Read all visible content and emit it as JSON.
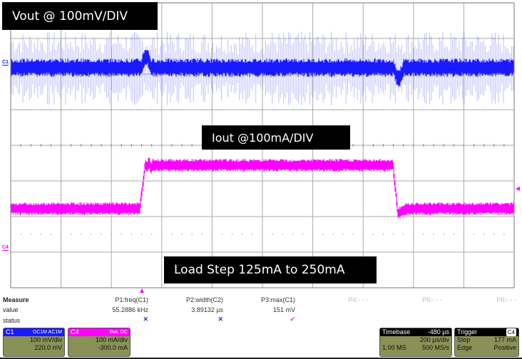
{
  "labels": {
    "vout": "Vout @ 100mV/DIV",
    "iout": "Iout @100mA/DIV",
    "load_step": "Load Step 125mA to 250mA"
  },
  "channels": {
    "c1_marker": "C1",
    "c4_marker": "C4"
  },
  "colors": {
    "c1": "#1a1aff",
    "c4": "#ff00ff",
    "panel": "#8a9156"
  },
  "measure": {
    "title": "Measure",
    "row_value": "value",
    "row_status": "status",
    "params": [
      {
        "name": "P1:freq(C1)",
        "value": "55.2886 kHz",
        "status": "✕"
      },
      {
        "name": "P2:width(C2)",
        "value": "3.89132 µs",
        "status": "✕"
      },
      {
        "name": "P3:max(C1)",
        "value": "151 mV",
        "status": "✓"
      },
      {
        "name": "P4:- - -",
        "value": "",
        "status": ""
      },
      {
        "name": "P5:- - -",
        "value": "",
        "status": ""
      },
      {
        "name": "P6:- - -",
        "value": "",
        "status": ""
      }
    ]
  },
  "c1_box": {
    "title": "C1",
    "tags": "DC1M AC1M",
    "scale": "100 mV/div",
    "offset": "220.0 mV"
  },
  "c4_box": {
    "title": "C4",
    "tags": "BwL DC",
    "scale": "100 mA/div",
    "offset": "-300.0 mA"
  },
  "timebase": {
    "title": "Timebase",
    "delay": "-480 µs",
    "scale": "200 µs/div",
    "samples": "1.00 MS",
    "rate": "500 MS/s"
  },
  "trigger": {
    "title": "Trigger",
    "source": "C4",
    "mode": "Stop",
    "level": "177 mA",
    "type": "Edge",
    "slope": "Positive"
  }
}
